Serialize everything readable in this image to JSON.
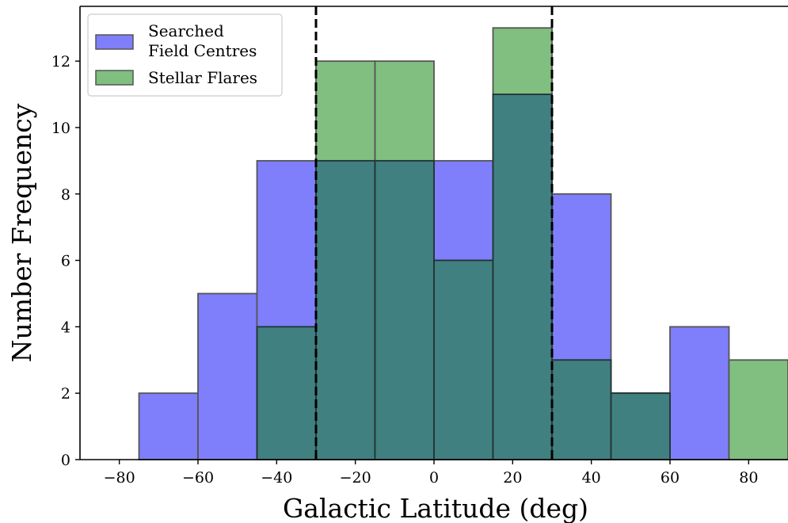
{
  "chart_data": {
    "type": "bar",
    "xlabel": "Galactic Latitude (deg)",
    "ylabel": "Number Frequency",
    "xlim": [
      -90,
      90
    ],
    "ylim": [
      0,
      13.65
    ],
    "xticks": [
      -80,
      -60,
      -40,
      -20,
      0,
      20,
      40,
      60,
      80
    ],
    "xtick_labels": [
      "−80",
      "−60",
      "−40",
      "−20",
      "0",
      "20",
      "40",
      "60",
      "80"
    ],
    "yticks": [
      0,
      2,
      4,
      6,
      8,
      10,
      12
    ],
    "yticks_labels": [
      "0",
      "2",
      "4",
      "6",
      "8",
      "10",
      "12"
    ],
    "bin_edges": [
      -75,
      -60,
      -45,
      -30,
      -15,
      0,
      15,
      30,
      45,
      60,
      75,
      90
    ],
    "series": [
      {
        "name": "Searched\nField Centres",
        "color": "#7f7ffc",
        "values": [
          2,
          5,
          9,
          9,
          9,
          9,
          11,
          8,
          2,
          4,
          0
        ]
      },
      {
        "name": "Stellar Flares",
        "color": "#80bf80",
        "values": [
          0,
          0,
          4,
          12,
          12,
          6,
          13,
          3,
          2,
          0,
          3
        ]
      }
    ],
    "reference_lines": [
      -30,
      30
    ],
    "overlap_color": "#408080",
    "legend_position": "upper-left",
    "grid": false
  }
}
